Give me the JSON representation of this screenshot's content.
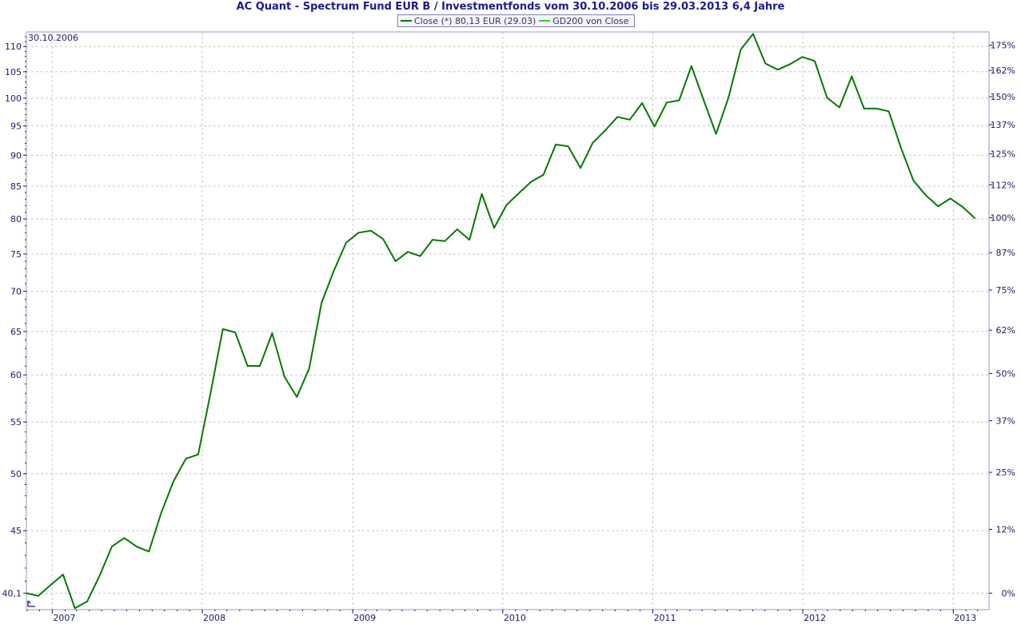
{
  "chart_data": {
    "type": "line",
    "title": "AC Quant - Spectrum Fund EUR B / Investmentfonds vom 30.10.2006 bis 29.03.2013 6,4 Jahre",
    "start_label": "30.10.2006",
    "legend": [
      {
        "label": "Close (*) 80,13 EUR (29.03)",
        "color": "#007a00"
      },
      {
        "label": "GD200 von Close",
        "color": "#33cc33"
      }
    ],
    "y_scale": "log",
    "ylim": [
      38.9,
      113
    ],
    "x_range": [
      "2006-10-30",
      "2013-03-29"
    ],
    "y_ticks_left": [
      {
        "value": 110,
        "label": "110"
      },
      {
        "value": 105,
        "label": "105"
      },
      {
        "value": 100,
        "label": "100"
      },
      {
        "value": 95,
        "label": "95"
      },
      {
        "value": 90,
        "label": "90"
      },
      {
        "value": 85,
        "label": "85"
      },
      {
        "value": 80,
        "label": "80"
      },
      {
        "value": 75,
        "label": "75"
      },
      {
        "value": 70,
        "label": "70"
      },
      {
        "value": 65,
        "label": "65"
      },
      {
        "value": 60,
        "label": "60"
      },
      {
        "value": 55,
        "label": "55"
      },
      {
        "value": 50,
        "label": "50"
      },
      {
        "value": 45,
        "label": "45"
      },
      {
        "value": 40.1,
        "label": "40,1"
      }
    ],
    "y_ticks_right": [
      {
        "value": 110.275,
        "label": "175%"
      },
      {
        "value": 105.2625,
        "label": "162%"
      },
      {
        "value": 100.25,
        "label": "150%"
      },
      {
        "value": 95.2375,
        "label": "137%"
      },
      {
        "value": 90.225,
        "label": "125%"
      },
      {
        "value": 85.2125,
        "label": "112%"
      },
      {
        "value": 80.2,
        "label": "100%"
      },
      {
        "value": 75.1875,
        "label": "87%"
      },
      {
        "value": 70.175,
        "label": "75%"
      },
      {
        "value": 65.1625,
        "label": "62%"
      },
      {
        "value": 60.15,
        "label": "50%"
      },
      {
        "value": 55.1375,
        "label": "37%"
      },
      {
        "value": 50.125,
        "label": "25%"
      },
      {
        "value": 45.1125,
        "label": "12%"
      },
      {
        "value": 40.1,
        "label": "0%"
      }
    ],
    "x_ticks": [
      {
        "date": "2007-01-01",
        "label": "2007"
      },
      {
        "date": "2008-01-01",
        "label": "2008"
      },
      {
        "date": "2009-01-01",
        "label": "2009"
      },
      {
        "date": "2010-01-01",
        "label": "2010"
      },
      {
        "date": "2011-01-01",
        "label": "2011"
      },
      {
        "date": "2012-01-01",
        "label": "2012"
      },
      {
        "date": "2013-01-01",
        "label": "2013"
      }
    ],
    "grid": true,
    "series": [
      {
        "name": "Close (*) 80,13 EUR (29.03)",
        "color": "#007a00",
        "points": [
          [
            "2006-10-30",
            40.1
          ],
          [
            "2006-11-28",
            39.9
          ],
          [
            "2006-12-28",
            40.7
          ],
          [
            "2007-01-27",
            41.5
          ],
          [
            "2007-02-25",
            39.0
          ],
          [
            "2007-03-27",
            39.5
          ],
          [
            "2007-04-26",
            41.4
          ],
          [
            "2007-05-26",
            43.7
          ],
          [
            "2007-06-25",
            44.4
          ],
          [
            "2007-07-25",
            43.7
          ],
          [
            "2007-08-24",
            43.3
          ],
          [
            "2007-09-23",
            46.5
          ],
          [
            "2007-10-23",
            49.3
          ],
          [
            "2007-11-22",
            51.4
          ],
          [
            "2007-12-22",
            51.8
          ],
          [
            "2008-01-21",
            58.0
          ],
          [
            "2008-02-20",
            65.3
          ],
          [
            "2008-03-21",
            64.9
          ],
          [
            "2008-04-20",
            61.0
          ],
          [
            "2008-05-20",
            61.0
          ],
          [
            "2008-06-19",
            64.8
          ],
          [
            "2008-07-19",
            59.8
          ],
          [
            "2008-08-18",
            57.6
          ],
          [
            "2008-09-17",
            60.7
          ],
          [
            "2008-10-17",
            68.5
          ],
          [
            "2008-11-16",
            72.7
          ],
          [
            "2008-12-16",
            76.6
          ],
          [
            "2009-01-15",
            78.0
          ],
          [
            "2009-02-14",
            78.3
          ],
          [
            "2009-03-16",
            77.1
          ],
          [
            "2009-04-15",
            74.0
          ],
          [
            "2009-05-15",
            75.3
          ],
          [
            "2009-06-14",
            74.7
          ],
          [
            "2009-07-14",
            77.0
          ],
          [
            "2009-08-13",
            76.8
          ],
          [
            "2009-09-12",
            78.5
          ],
          [
            "2009-10-12",
            77.0
          ],
          [
            "2009-11-11",
            83.8
          ],
          [
            "2009-12-11",
            78.7
          ],
          [
            "2010-01-10",
            82.1
          ],
          [
            "2010-02-09",
            83.9
          ],
          [
            "2010-03-11",
            85.7
          ],
          [
            "2010-04-10",
            86.8
          ],
          [
            "2010-05-10",
            91.8
          ],
          [
            "2010-06-09",
            91.5
          ],
          [
            "2010-07-09",
            87.9
          ],
          [
            "2010-08-08",
            92.1
          ],
          [
            "2010-09-07",
            94.2
          ],
          [
            "2010-10-07",
            96.6
          ],
          [
            "2010-11-06",
            96.1
          ],
          [
            "2010-12-06",
            99.1
          ],
          [
            "2011-01-05",
            94.9
          ],
          [
            "2011-02-04",
            99.2
          ],
          [
            "2011-03-06",
            99.6
          ],
          [
            "2011-04-05",
            106.1
          ],
          [
            "2011-05-05",
            99.6
          ],
          [
            "2011-06-04",
            93.6
          ],
          [
            "2011-07-04",
            100.1
          ],
          [
            "2011-08-03",
            109.4
          ],
          [
            "2011-09-02",
            112.6
          ],
          [
            "2011-10-02",
            106.6
          ],
          [
            "2011-11-01",
            105.4
          ],
          [
            "2011-12-01",
            106.5
          ],
          [
            "2011-12-31",
            107.9
          ],
          [
            "2012-01-30",
            107.1
          ],
          [
            "2012-02-29",
            100.1
          ],
          [
            "2012-03-30",
            98.3
          ],
          [
            "2012-04-29",
            104.1
          ],
          [
            "2012-05-29",
            98.1
          ],
          [
            "2012-06-28",
            98.1
          ],
          [
            "2012-07-28",
            97.6
          ],
          [
            "2012-08-27",
            91.2
          ],
          [
            "2012-09-26",
            85.9
          ],
          [
            "2012-10-26",
            83.6
          ],
          [
            "2012-11-25",
            81.9
          ],
          [
            "2012-12-25",
            83.1
          ],
          [
            "2013-01-24",
            81.8
          ],
          [
            "2013-02-23",
            80.1
          ]
        ]
      },
      {
        "name": "GD200 von Close",
        "color": "#33cc33",
        "points": []
      }
    ]
  }
}
